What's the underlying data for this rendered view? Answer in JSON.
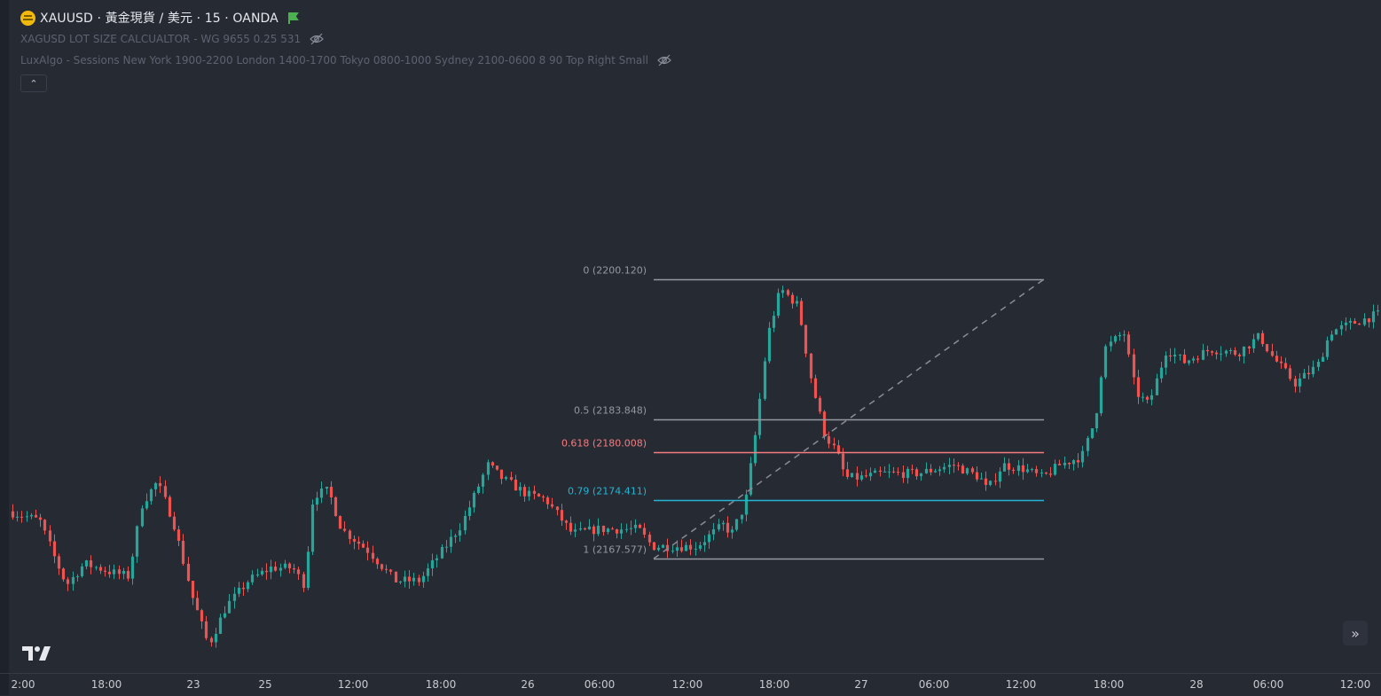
{
  "header": {
    "symbol_title": "XAUUSD · 黃金現貨 / 美元 · 15 · OANDA",
    "indicator_1": "XAGUSD LOT SIZE CALCUALTOR - WG 9655 0.25 531",
    "indicator_2": "LuxAlgo - Sessions New York 1900-2200 London 1400-1700 Tokyo 0800-1000 Sydney 2100-0600 8 90 Top Right Small",
    "collapse_glyph": "⌃",
    "icons": [
      "symbol-logo-icon",
      "flag-icon",
      "eye-off-icon",
      "chevron-up-icon"
    ]
  },
  "colors": {
    "background": "#262a33",
    "up": "#26a69a",
    "down": "#ef5350",
    "fib_grey": "#9598a1",
    "fib_red": "#f77c80",
    "fib_cyan": "#22b5d5"
  },
  "chart_data": {
    "type": "candlestick",
    "symbol": "XAUUSD",
    "timeframe": "15",
    "x_tick_labels": [
      "2:00",
      "18:00",
      "23",
      "25",
      "12:00",
      "18:00",
      "26",
      "06:00",
      "12:00",
      "18:00",
      "27",
      "06:00",
      "12:00",
      "18:00",
      "28",
      "06:00",
      "12:00"
    ],
    "price_range": [
      2155,
      2212
    ],
    "price_path": [
      [
        0,
        2173.5
      ],
      [
        50,
        2172.0
      ],
      [
        65,
        2168.0
      ],
      [
        80,
        2164.5
      ],
      [
        100,
        2167.0
      ],
      [
        130,
        2166.0
      ],
      [
        150,
        2165.5
      ],
      [
        165,
        2174.0
      ],
      [
        182,
        2176.5
      ],
      [
        200,
        2172.0
      ],
      [
        222,
        2163.0
      ],
      [
        240,
        2157.5
      ],
      [
        260,
        2162.0
      ],
      [
        285,
        2165.0
      ],
      [
        310,
        2166.5
      ],
      [
        335,
        2166.5
      ],
      [
        348,
        2164.5
      ],
      [
        358,
        2175.0
      ],
      [
        375,
        2175.5
      ],
      [
        390,
        2171.0
      ],
      [
        420,
        2168.5
      ],
      [
        450,
        2165.0
      ],
      [
        478,
        2165.0
      ],
      [
        500,
        2168.0
      ],
      [
        525,
        2171.5
      ],
      [
        555,
        2178.5
      ],
      [
        570,
        2177.0
      ],
      [
        600,
        2175.0
      ],
      [
        620,
        2174.5
      ],
      [
        650,
        2170.5
      ],
      [
        680,
        2171.0
      ],
      [
        725,
        2171.0
      ],
      [
        740,
        2169.0
      ],
      [
        790,
        2169.0
      ],
      [
        820,
        2171.5
      ],
      [
        830,
        2170.5
      ],
      [
        845,
        2174.0
      ],
      [
        858,
        2183.0
      ],
      [
        870,
        2193.5
      ],
      [
        885,
        2199.0
      ],
      [
        905,
        2197.0
      ],
      [
        920,
        2188.0
      ],
      [
        935,
        2182.0
      ],
      [
        948,
        2180.0
      ],
      [
        958,
        2177.0
      ],
      [
        975,
        2177.0
      ],
      [
        1000,
        2177.5
      ],
      [
        1040,
        2177.5
      ],
      [
        1080,
        2178.5
      ],
      [
        1110,
        2177.0
      ],
      [
        1118,
        2175.5
      ],
      [
        1135,
        2178.5
      ],
      [
        1160,
        2178.0
      ],
      [
        1180,
        2177.0
      ],
      [
        1200,
        2178.5
      ],
      [
        1225,
        2179.5
      ],
      [
        1240,
        2184.0
      ],
      [
        1250,
        2192.0
      ],
      [
        1272,
        2194.0
      ],
      [
        1285,
        2187.0
      ],
      [
        1300,
        2185.5
      ],
      [
        1320,
        2192.0
      ],
      [
        1340,
        2190.5
      ],
      [
        1370,
        2192.0
      ],
      [
        1400,
        2191.5
      ],
      [
        1425,
        2193.5
      ],
      [
        1440,
        2191.0
      ],
      [
        1465,
        2188.0
      ],
      [
        1490,
        2190.0
      ],
      [
        1505,
        2194.0
      ],
      [
        1530,
        2195.0
      ],
      [
        1557,
        2196.0
      ]
    ],
    "fib_levels": [
      {
        "ratio": 0,
        "price": 2200.12,
        "label": "0 (2200.120)",
        "color": "#9598a1"
      },
      {
        "ratio": 0.5,
        "price": 2183.848,
        "label": "0.5 (2183.848)",
        "color": "#9598a1"
      },
      {
        "ratio": 0.618,
        "price": 2180.008,
        "label": "0.618 (2180.008)",
        "color": "#f77c80"
      },
      {
        "ratio": 0.79,
        "price": 2174.411,
        "label": "0.79 (2174.411)",
        "color": "#22b5d5"
      },
      {
        "ratio": 1,
        "price": 2167.577,
        "label": "1 (2167.577)",
        "color": "#9598a1"
      }
    ],
    "fib_line_style": {
      "levels": "solid",
      "trend_line": "dashed",
      "trend_line_from": 2167.577,
      "trend_line_to": 2200.12,
      "label_side": "left"
    },
    "grid": false,
    "legend": "top-left"
  },
  "footer": {
    "scroll_glyph": "»",
    "logo_text": "TV"
  }
}
